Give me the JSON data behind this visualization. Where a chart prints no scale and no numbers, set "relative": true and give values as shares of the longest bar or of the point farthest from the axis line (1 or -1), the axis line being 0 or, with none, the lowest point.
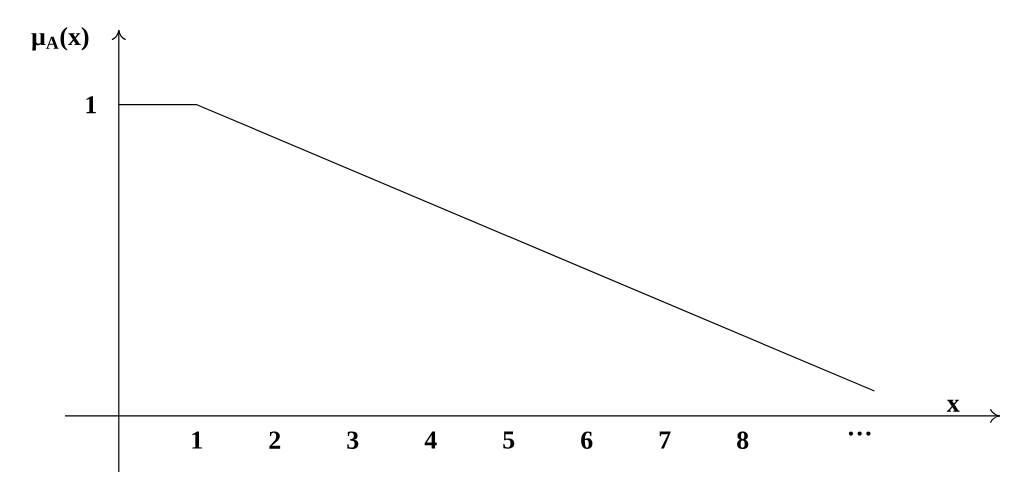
{
  "chart_data": {
    "type": "line",
    "relative": true,
    "xlabel": "x",
    "ylabel": "μ$_{A}$(x)",
    "xlim": [
      -0.69,
      11.3
    ],
    "xticks": [
      1,
      2,
      3,
      4,
      5,
      6,
      7,
      8,
      {
        "value": 9.5,
        "label": "…"
      }
    ],
    "annotations": [
      "1"
    ],
    "series": [
      {
        "color": "#000000",
        "x": [
          0,
          1,
          9.69
        ],
        "values": [
          1,
          1,
          0.08
        ]
      }
    ],
    "grid": false,
    "marker": "none",
    "line_style": "solid"
  }
}
